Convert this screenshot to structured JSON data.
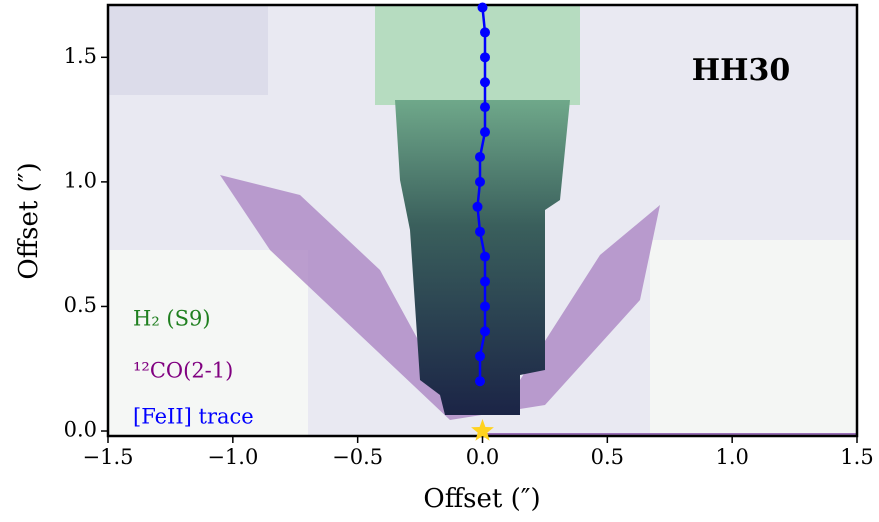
{
  "chart_data": {
    "type": "line",
    "title": "HH30",
    "x_label": "Offset  (″)",
    "y_label": "Offset  (″)",
    "xlim": [
      -1.5,
      1.5
    ],
    "ylim": [
      -0.02,
      1.71
    ],
    "xticks": [
      {
        "value": -1.5,
        "label": "−1.5"
      },
      {
        "value": -1.0,
        "label": "−1.0"
      },
      {
        "value": -0.5,
        "label": "−0.5"
      },
      {
        "value": 0.0,
        "label": "0.0"
      },
      0.5,
      {
        "value": 1.0,
        "label": "1.0"
      },
      1.5
    ],
    "yticks": [
      {
        "value": 0.0,
        "label": "0.0"
      },
      0.5,
      {
        "value": 1.0,
        "label": "1.0"
      },
      1.5
    ],
    "series": [
      {
        "name": "[FeII] trace",
        "color": "#0000ff",
        "x": [
          -0.01,
          -0.01,
          0.01,
          0.01,
          0.01,
          0.01,
          -0.01,
          -0.02,
          -0.01,
          -0.01,
          0.01,
          0.01,
          0.01,
          0.01,
          0.01,
          0.0
        ],
        "values": [
          0.2,
          0.3,
          0.4,
          0.5,
          0.6,
          0.7,
          0.8,
          0.9,
          1.0,
          1.1,
          1.2,
          1.3,
          1.4,
          1.5,
          1.6,
          1.7
        ]
      }
    ],
    "source": {
      "x": 0.0,
      "y": 0.0,
      "color": "#ffd21f"
    },
    "annotations": [
      {
        "text": "H₂ (S9)",
        "color": "#1f7f1f"
      },
      {
        "text": "¹²CO(2-1)",
        "color": "#800080"
      }
    ]
  }
}
